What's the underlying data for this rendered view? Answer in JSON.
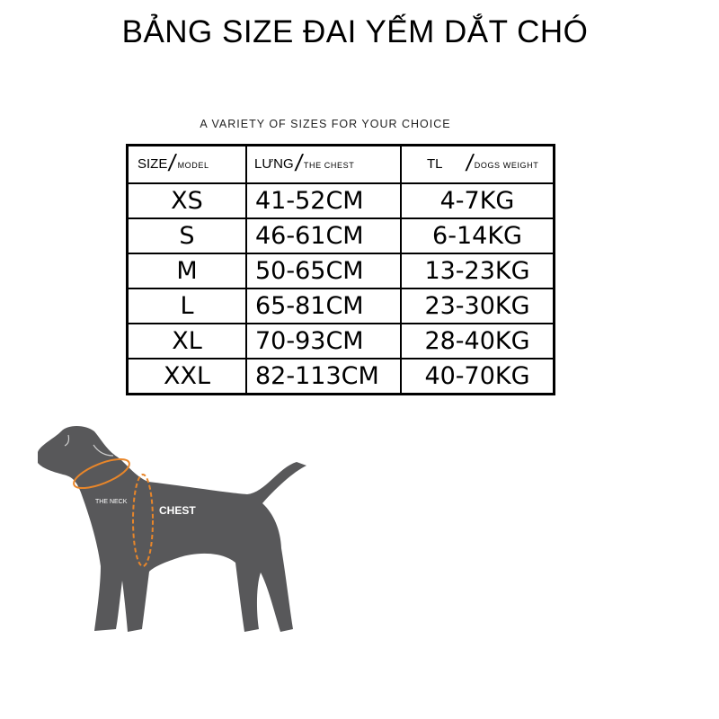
{
  "title": "BẢNG SIZE ĐAI YẾM DẮT CHÓ",
  "subtitle": "A VARIETY OF SIZES FOR YOUR CHOICE",
  "table": {
    "headers": [
      {
        "main": "SIZE",
        "sub": "MODEL"
      },
      {
        "main": "LƯNG",
        "sub": "THE CHEST"
      },
      {
        "main": "TL",
        "sub": "DOGS WEIGHT"
      }
    ],
    "rows": [
      [
        "XS",
        "41-52CM",
        "4-7KG"
      ],
      [
        "S",
        "46-61CM",
        "6-14KG"
      ],
      [
        "M",
        "50-65CM",
        "13-23KG"
      ],
      [
        "L",
        "65-81CM",
        "23-30KG"
      ],
      [
        "XL",
        "70-93CM",
        "28-40KG"
      ],
      [
        "XXL",
        "82-113CM",
        "40-70KG"
      ]
    ]
  },
  "diagram": {
    "neck_label": "THE NECK",
    "chest_label": "CHEST",
    "dog_color": "#58585a",
    "measure_color": "#e8862a"
  }
}
